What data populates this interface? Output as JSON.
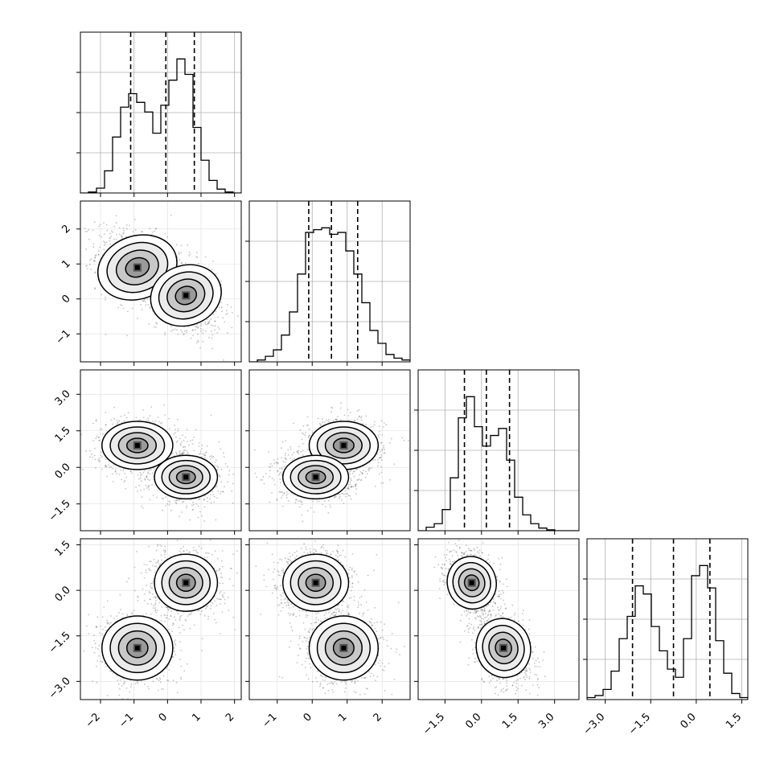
{
  "chart_data": {
    "type": "corner",
    "n_params": 4,
    "grid": true,
    "colors": {
      "hist": "#000000",
      "contour": "#000000",
      "scatter": "#555555",
      "fill": "#ffffff"
    },
    "quantile_lines": {
      "style": "dashed",
      "color": "#000000"
    },
    "params": [
      {
        "range": [
          -2.6,
          2.2
        ],
        "ticks": [
          -2,
          -1,
          0,
          1,
          2
        ],
        "tick_labels": [
          "−2",
          "−1",
          "0",
          "1",
          "2"
        ]
      },
      {
        "range": [
          -1.8,
          2.8
        ],
        "ticks": [
          -1,
          0,
          1,
          2
        ],
        "tick_labels": [
          "−1",
          "0",
          "1",
          "2"
        ]
      },
      {
        "range": [
          -2.6,
          4.0
        ],
        "ticks": [
          -1.5,
          0.0,
          1.5,
          3.0
        ],
        "tick_labels": [
          "−1.5",
          "0.0",
          "1.5",
          "3.0"
        ]
      },
      {
        "range": [
          -3.6,
          1.7
        ],
        "ticks": [
          -3.0,
          -1.5,
          0.0,
          1.5
        ],
        "tick_labels": [
          "−3.0",
          "−1.5",
          "0.0",
          "1.5"
        ]
      }
    ],
    "marginals": [
      {
        "param": 0,
        "quantiles": [
          -1.1,
          -0.05,
          0.8
        ],
        "bins": [
          -2.6,
          -2.36,
          -2.12,
          -1.88,
          -1.64,
          -1.4,
          -1.16,
          -0.92,
          -0.68,
          -0.44,
          -0.2,
          0.04,
          0.28,
          0.52,
          0.76,
          1.0,
          1.24,
          1.48,
          1.72,
          1.96,
          2.2
        ],
        "counts": [
          0,
          1,
          5,
          23,
          58,
          89,
          103,
          94,
          84,
          62,
          91,
          117,
          139,
          123,
          68,
          34,
          13,
          4,
          1,
          0
        ]
      },
      {
        "param": 1,
        "quantiles": [
          -0.1,
          0.55,
          1.3
        ],
        "bins": [
          -1.8,
          -1.57,
          -1.34,
          -1.11,
          -0.88,
          -0.65,
          -0.42,
          -0.19,
          0.04,
          0.27,
          0.5,
          0.73,
          0.96,
          1.19,
          1.42,
          1.65,
          1.88,
          2.11,
          2.34,
          2.57,
          2.8
        ],
        "counts": [
          0,
          2,
          6,
          13,
          29,
          54,
          95,
          140,
          143,
          145,
          138,
          140,
          120,
          95,
          64,
          34,
          20,
          8,
          4,
          2
        ]
      },
      {
        "param": 2,
        "quantiles": [
          -0.7,
          0.2,
          1.15
        ],
        "bins": [
          -2.6,
          -2.27,
          -1.94,
          -1.61,
          -1.28,
          -0.95,
          -0.62,
          -0.29,
          0.04,
          0.37,
          0.7,
          1.03,
          1.36,
          1.69,
          2.02,
          2.35,
          2.68,
          3.01,
          3.34,
          3.67,
          4.0
        ],
        "counts": [
          0,
          4,
          8,
          24,
          60,
          128,
          152,
          118,
          96,
          108,
          116,
          80,
          38,
          18,
          8,
          3,
          1,
          0,
          0,
          0
        ]
      },
      {
        "param": 3,
        "quantiles": [
          -2.1,
          -0.75,
          0.45
        ],
        "bins": [
          -3.6,
          -3.335,
          -3.07,
          -2.805,
          -2.54,
          -2.275,
          -2.01,
          -1.745,
          -1.48,
          -1.215,
          -0.95,
          -0.685,
          -0.42,
          -0.155,
          0.11,
          0.375,
          0.64,
          0.905,
          1.17,
          1.435,
          1.7
        ],
        "counts": [
          2,
          4,
          10,
          28,
          60,
          82,
          112,
          104,
          72,
          48,
          30,
          22,
          60,
          122,
          132,
          110,
          58,
          26,
          6,
          2
        ]
      }
    ],
    "modes": [
      {
        "center": [
          -0.9,
          0.9,
          0.9,
          -1.9
        ],
        "sigma": [
          0.45,
          0.42,
          0.42,
          0.45
        ]
      },
      {
        "center": [
          0.55,
          0.1,
          -0.4,
          0.25
        ],
        "sigma": [
          0.4,
          0.4,
          0.38,
          0.4
        ]
      }
    ],
    "pair_correlations": {
      "0-1": -0.35,
      "0-2": 0.0,
      "0-3": 0.0,
      "1-2": 0.0,
      "1-3": 0.0,
      "2-3": -0.3
    }
  }
}
